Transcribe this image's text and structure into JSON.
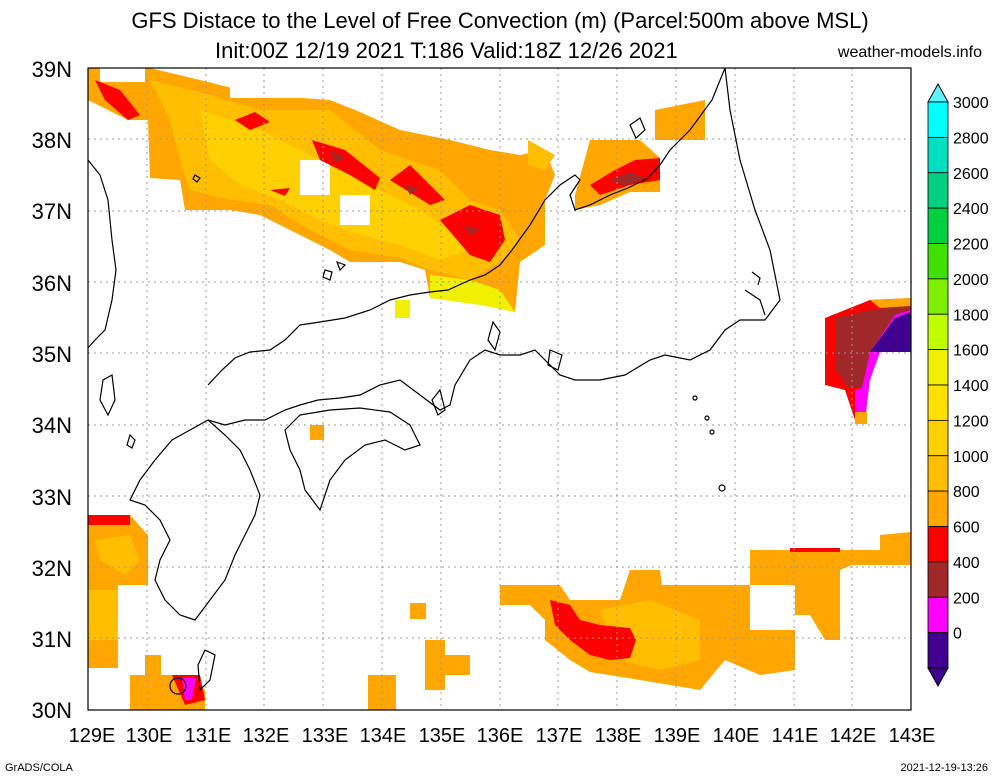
{
  "title": {
    "line1": "GFS Distace to the Level of Free Convection (m) (Parcel:500m above MSL)",
    "line2": "Init:00Z 12/19 2021 T:186 Valid:18Z 12/26 2021",
    "site": "weather-models.info"
  },
  "footer": {
    "left": "GrADS/COLA",
    "right": "2021-12-19-13:26"
  },
  "axes": {
    "lat_labels": [
      "39N",
      "38N",
      "37N",
      "36N",
      "35N",
      "34N",
      "33N",
      "32N",
      "31N",
      "30N"
    ],
    "lon_labels": [
      "129E",
      "130E",
      "131E",
      "132E",
      "133E",
      "134E",
      "135E",
      "136E",
      "137E",
      "138E",
      "139E",
      "140E",
      "141E",
      "142E",
      "143E"
    ]
  },
  "legend": {
    "labels": [
      "3000",
      "2800",
      "2600",
      "2400",
      "2200",
      "2000",
      "1800",
      "1600",
      "1400",
      "1200",
      "1000",
      "800",
      "600",
      "400",
      "200",
      "0"
    ],
    "colors": [
      "#00ffff",
      "#00e0c0",
      "#00d080",
      "#00d040",
      "#40e000",
      "#80f000",
      "#c0ff00",
      "#f0f000",
      "#ffe000",
      "#ffd000",
      "#ffbf00",
      "#ffa600",
      "#ff0000",
      "#a02828",
      "#ff00ff",
      "#400090"
    ],
    "top_arrow_color": "#60f0ff",
    "bottom_arrow_color": "#400090"
  },
  "colors": {
    "orange": "#ffa600",
    "yellow_orange": "#ffbf00",
    "yellow": "#ffd000",
    "red": "#ff0000",
    "brown": "#a02828",
    "magenta": "#ff00ff",
    "indigo": "#400090",
    "coast": "#000000",
    "grid": "#999999"
  }
}
